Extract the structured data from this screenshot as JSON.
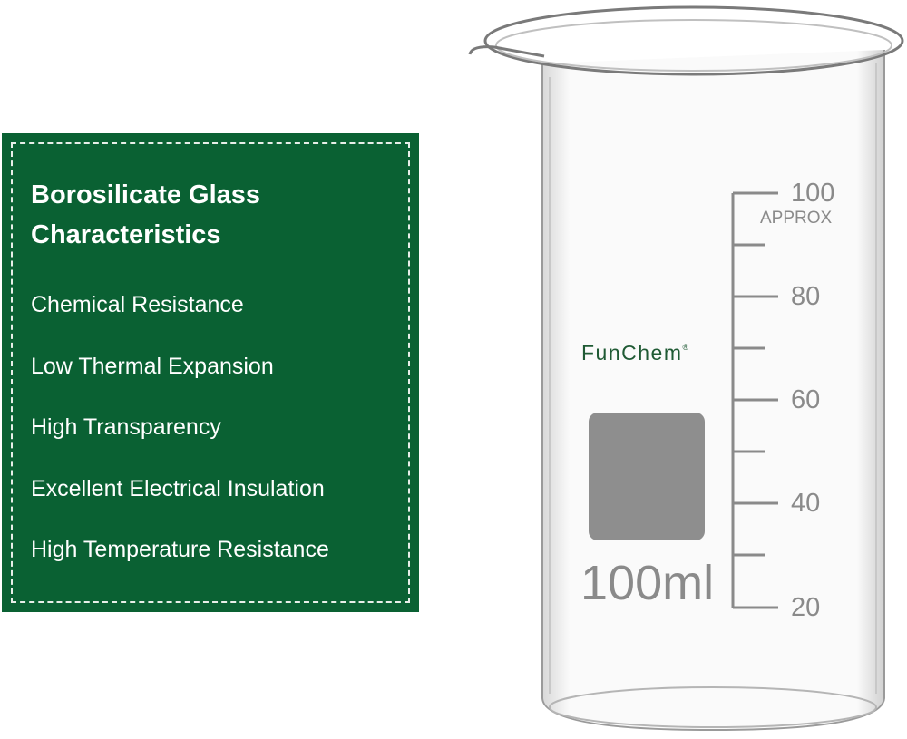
{
  "panel": {
    "title_line1": "Borosilicate Glass",
    "title_line2": "Characteristics",
    "features": [
      "Chemical Resistance",
      "Low Thermal Expansion",
      "High Transparency",
      "Excellent Electrical Insulation",
      "High Temperature Resistance"
    ],
    "background_color": "#0a6133"
  },
  "beaker": {
    "brand": "FunChem",
    "brand_mark": "®",
    "volume_label": "100ml",
    "scale_labels": [
      "100",
      "80",
      "60",
      "40",
      "20"
    ],
    "approx_label": "APPROX",
    "brand_color": "#1f5a34",
    "marking_color": "#8a8a8a"
  }
}
